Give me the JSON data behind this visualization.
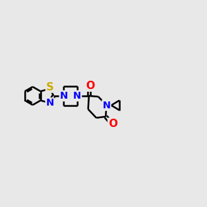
{
  "background_color": "#e8e8e8",
  "bond_color": "#000000",
  "bond_width": 1.8,
  "atom_colors": {
    "N": "#0000ff",
    "O": "#ff0000",
    "S": "#ccaa00",
    "C": "#000000"
  },
  "font_size": 10,
  "xlim": [
    -5.0,
    4.5
  ],
  "ylim": [
    -2.8,
    2.8
  ]
}
